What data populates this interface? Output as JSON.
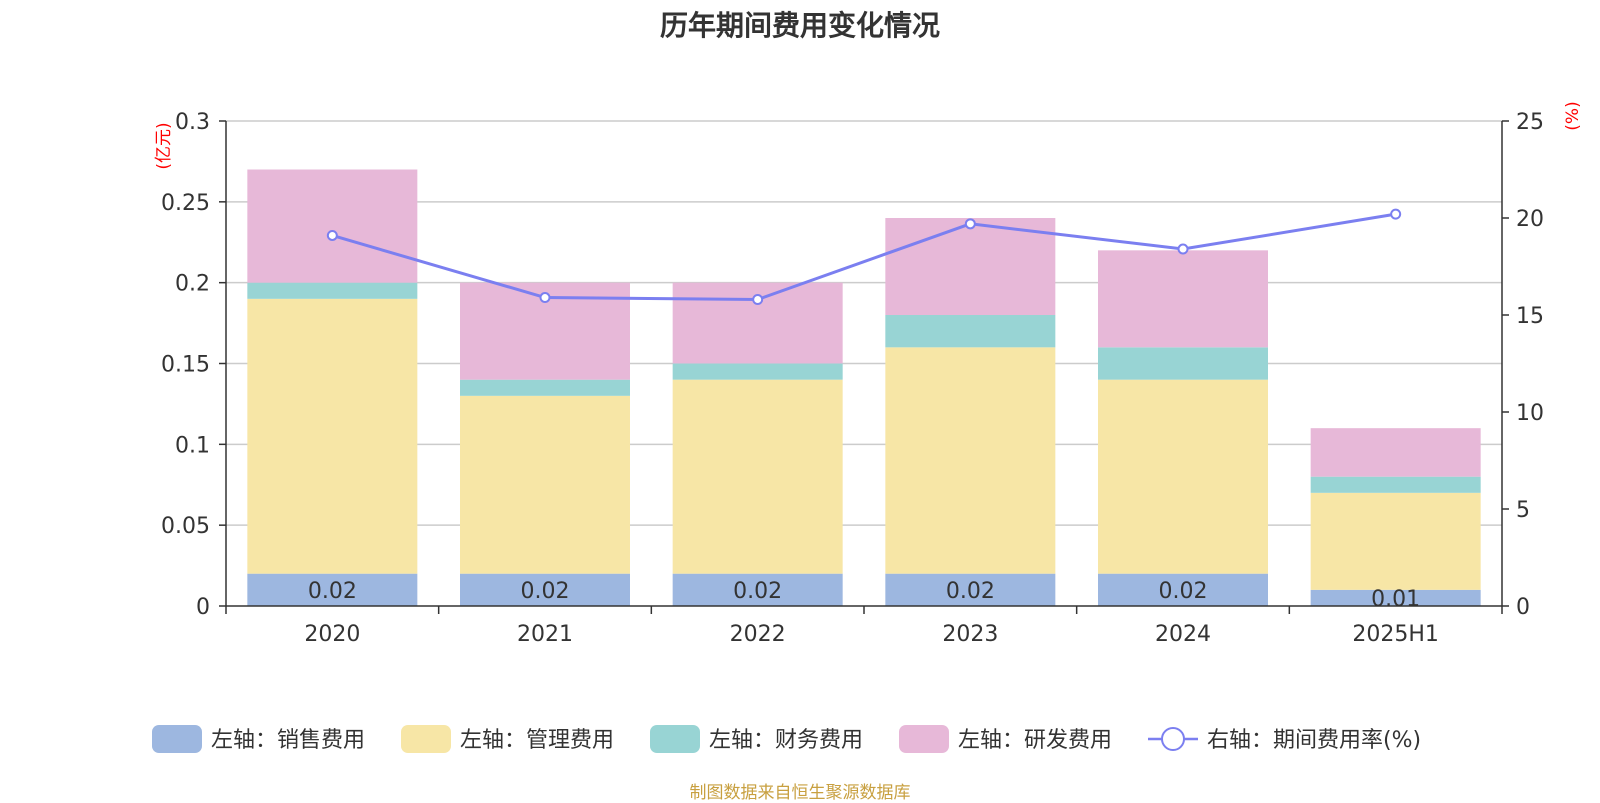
{
  "chart_data": {
    "type": "bar",
    "stacked": true,
    "title": "历年期间费用变化情况",
    "categories": [
      "2020",
      "2021",
      "2022",
      "2023",
      "2024",
      "2025H1"
    ],
    "left_axis": {
      "unit": "(亿元)",
      "ylim": [
        0,
        0.3
      ],
      "ticks": [
        0,
        0.05,
        0.1,
        0.15,
        0.2,
        0.25,
        0.3
      ],
      "tick_labels": [
        "0",
        "0.05",
        "0.1",
        "0.15",
        "0.2",
        "0.25",
        "0.3"
      ]
    },
    "right_axis": {
      "unit": "(%)",
      "ylim": [
        0,
        25
      ],
      "ticks": [
        0,
        5,
        10,
        15,
        20,
        25
      ],
      "tick_labels": [
        "0",
        "5",
        "10",
        "15",
        "20",
        "25"
      ]
    },
    "series": [
      {
        "name": "左轴：销售费用",
        "axis": "left",
        "color": "#9db7e0",
        "values": [
          0.02,
          0.02,
          0.02,
          0.02,
          0.02,
          0.01
        ],
        "data_labels": [
          "0.02",
          "0.02",
          "0.02",
          "0.02",
          "0.02",
          "0.01"
        ]
      },
      {
        "name": "左轴：管理费用",
        "axis": "left",
        "color": "#f7e6a6",
        "values": [
          0.17,
          0.11,
          0.12,
          0.14,
          0.12,
          0.06
        ]
      },
      {
        "name": "左轴：财务费用",
        "axis": "left",
        "color": "#98d4d4",
        "values": [
          0.01,
          0.01,
          0.01,
          0.02,
          0.02,
          0.01
        ]
      },
      {
        "name": "左轴：研发费用",
        "axis": "left",
        "color": "#e7b8d8",
        "values": [
          0.07,
          0.06,
          0.05,
          0.06,
          0.06,
          0.03
        ]
      },
      {
        "name": "右轴：期间费用率(%)",
        "axis": "right",
        "type": "line",
        "color": "#7b7ff0",
        "values": [
          19.1,
          15.9,
          15.8,
          19.7,
          18.4,
          20.2
        ]
      }
    ],
    "grid": true,
    "legend_position": "bottom"
  },
  "source_note": "制图数据来自恒生聚源数据库",
  "colors": {
    "unit_label": "#ff0000",
    "source_note": "#c8a040",
    "axis": "#333333",
    "grid": "#cccccc"
  }
}
